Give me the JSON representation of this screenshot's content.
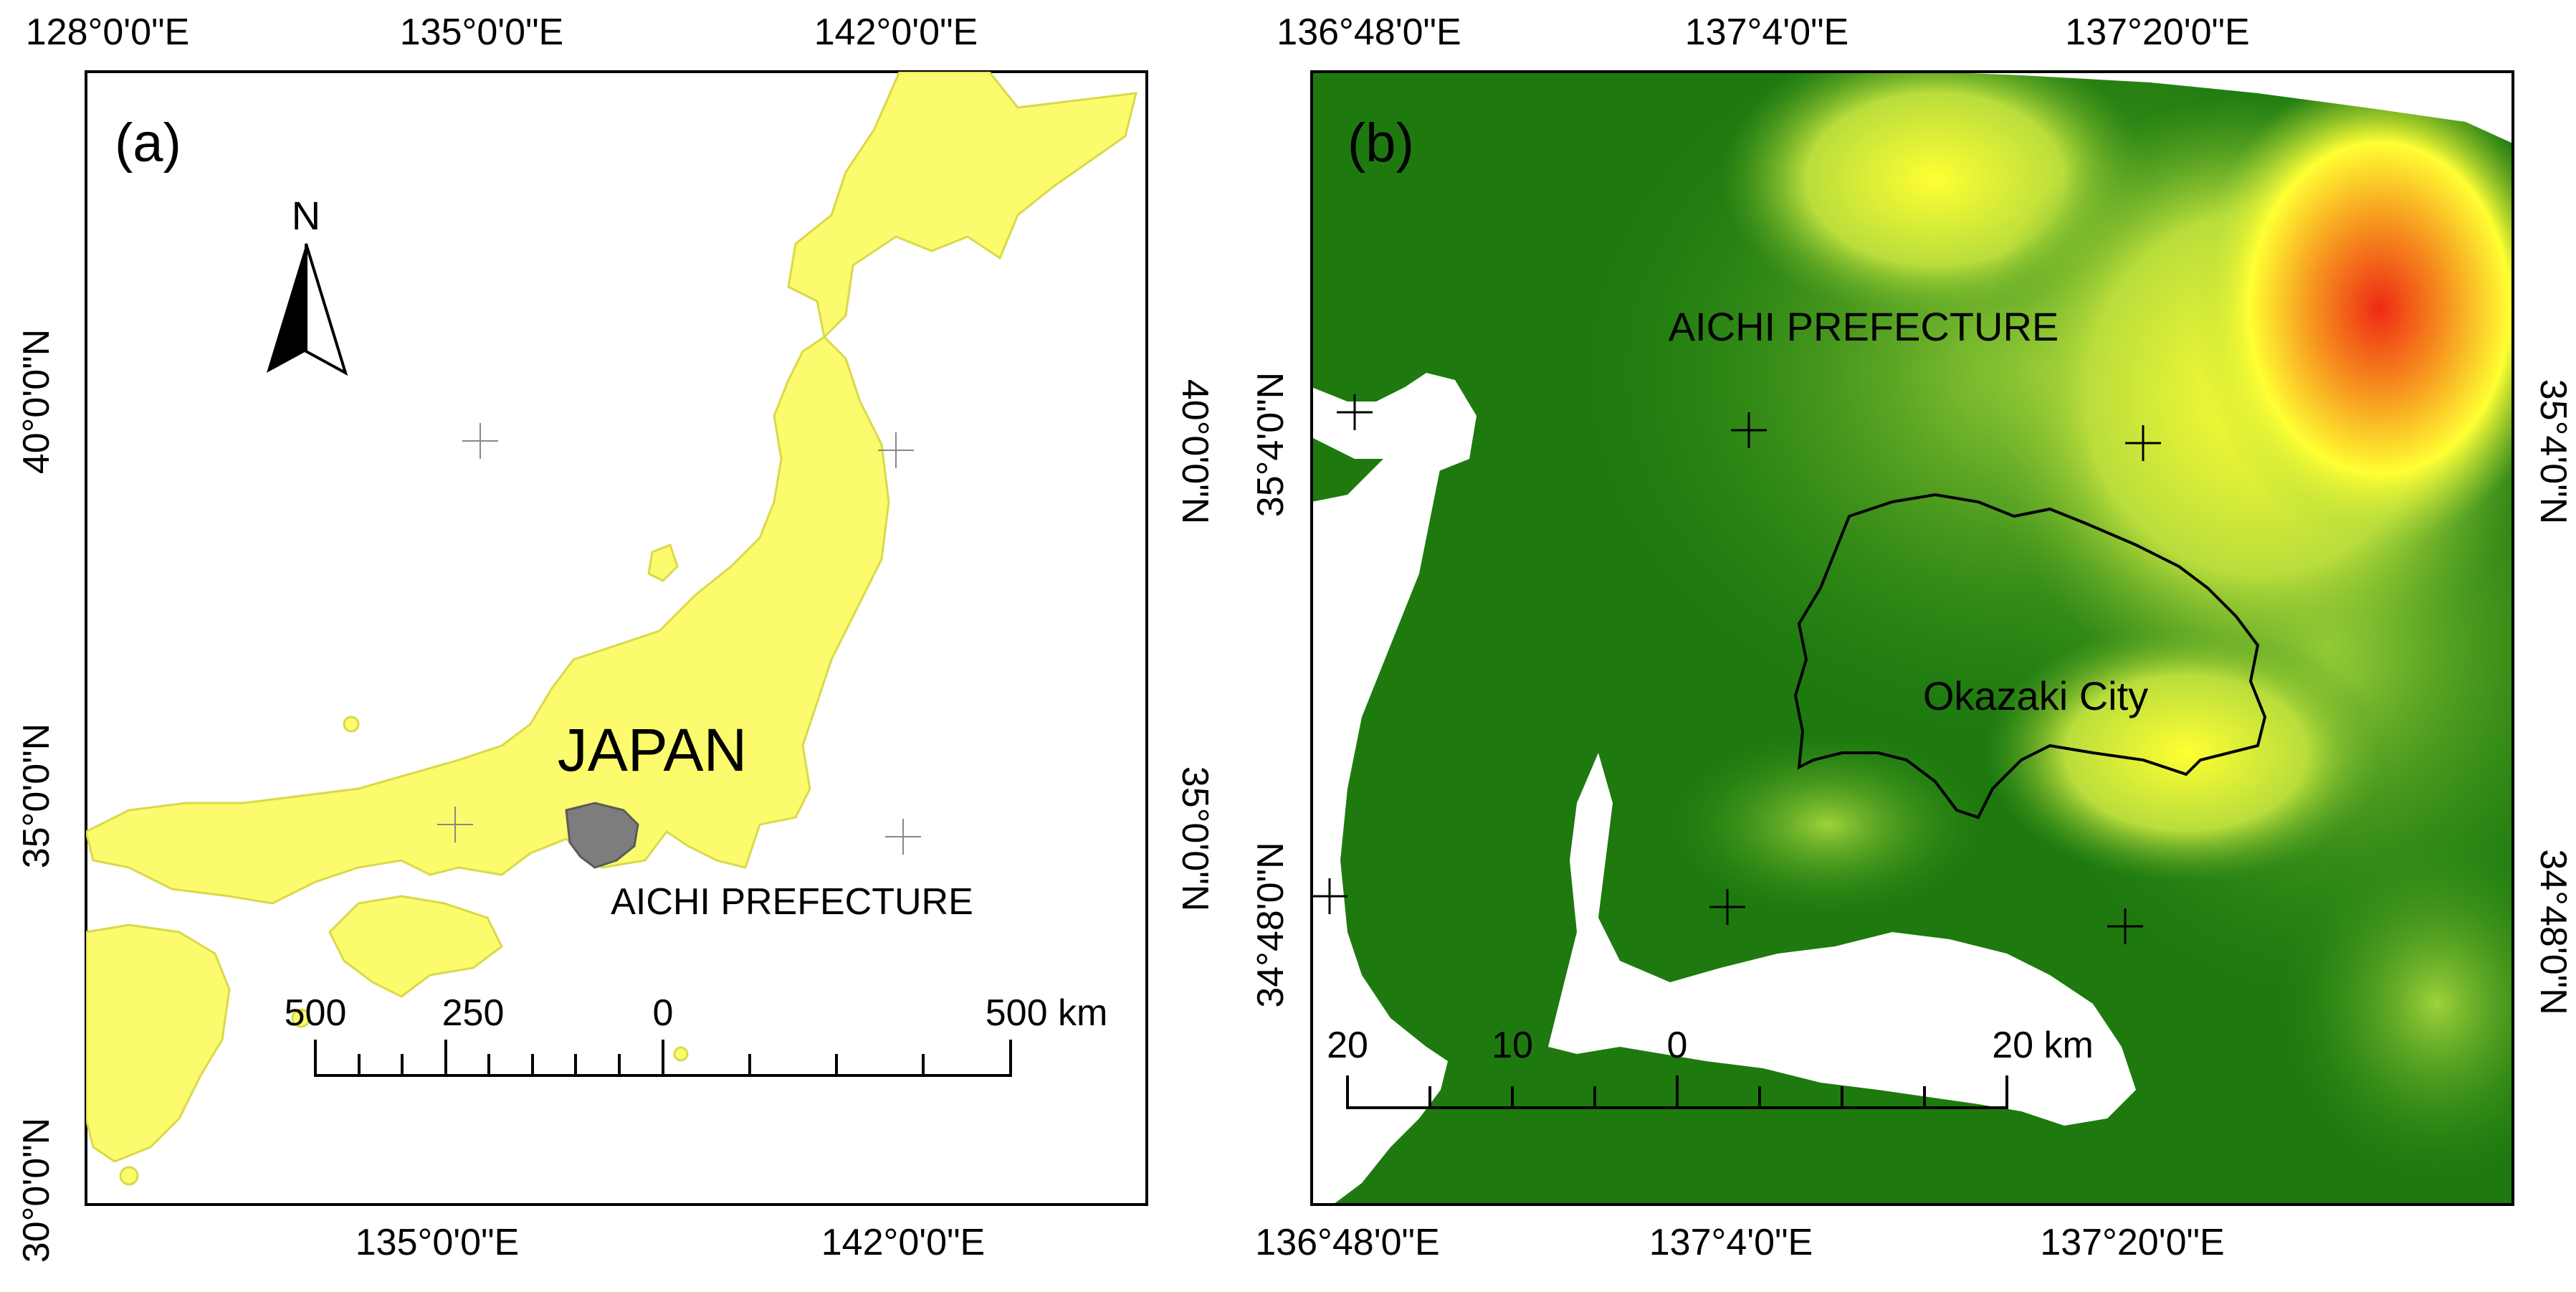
{
  "panel_a": {
    "tag": "(a)",
    "north": "N",
    "country_label": "JAPAN",
    "region_label": "AICHI PREFECTURE",
    "top_ticks": [
      "128°0'0\"E",
      "135°0'0\"E",
      "142°0'0\"E"
    ],
    "bottom_ticks": [
      "135°0'0\"E",
      "142°0'0\"E"
    ],
    "left_ticks": [
      "40°0'0\"N",
      "35°0'0\"N",
      "30°0'0\"N"
    ],
    "right_ticks": [
      "40°0'0\"N",
      "35°0'0\"N"
    ],
    "scale": {
      "labels": [
        "500",
        "250",
        "0",
        "500 km"
      ]
    },
    "colors": {
      "land": "#fbfb6d",
      "border": "#d9d94a",
      "aichi": "#7d7d7d"
    }
  },
  "panel_b": {
    "tag": "(b)",
    "region_label": "AICHI PREFECTURE",
    "city_label": "Okazaki City",
    "top_ticks": [
      "136°48'0\"E",
      "137°4'0\"E",
      "137°20'0\"E"
    ],
    "bottom_ticks": [
      "136°48'0\"E",
      "137°4'0\"E",
      "137°20'0\"E"
    ],
    "left_ticks": [
      "35°4'0\"N",
      "34°48'0\"N"
    ],
    "right_ticks": [
      "35°4'0\"N",
      "34°48'0\"N"
    ],
    "scale": {
      "labels": [
        "20",
        "10",
        "0",
        "20 km"
      ]
    },
    "colors": {
      "low": "#1e7a0f",
      "mid": "#a6d63c",
      "high": "#ffff33",
      "peak": "#ee2a14"
    }
  }
}
